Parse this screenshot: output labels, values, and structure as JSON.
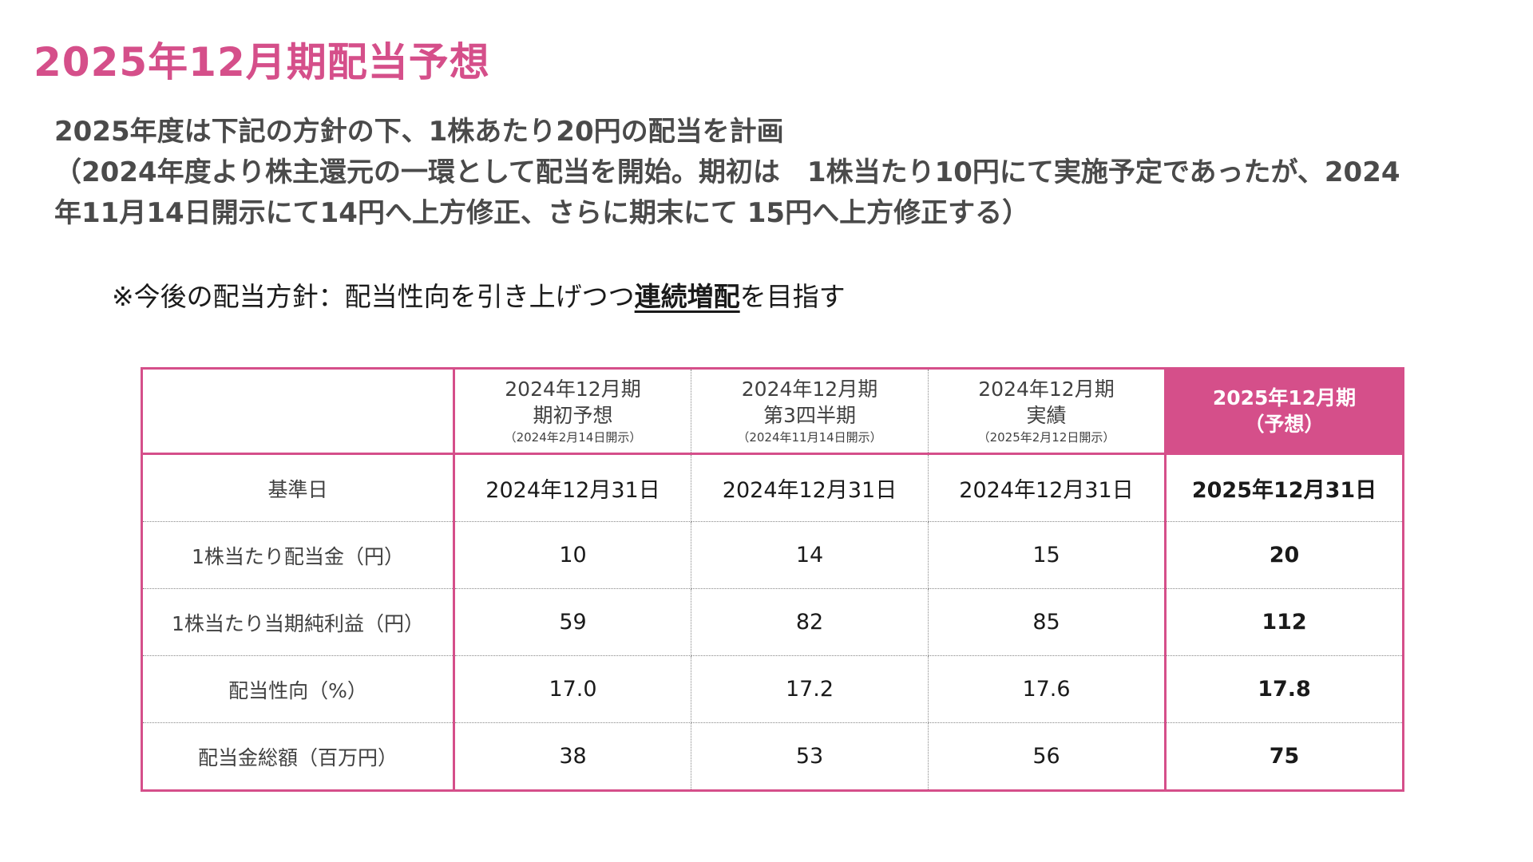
{
  "title": "2025年12月期配当予想",
  "lead": {
    "line1": "2025年度は下記の方針の下、1株あたり20円の配当を計画",
    "line2": "（2024年度より株主還元の一環として配当を開始。期初は　1株当たり10円にて実施予定であったが、2024",
    "line3": "年11月14日開示にて14円へ上方修正、さらに期末にて 15円へ上方修正する）"
  },
  "policy": {
    "prefix": "※今後の配当方針：配当性向を引き上げつつ",
    "emphasis": "連続増配",
    "suffix": "を目指す"
  },
  "table": {
    "columns": [
      {
        "line1": "2024年12月期",
        "line2": "期初予想",
        "note": "（2024年2月14日開示）"
      },
      {
        "line1": "2024年12月期",
        "line2": "第3四半期",
        "note": "（2024年11月14日開示）"
      },
      {
        "line1": "2024年12月期",
        "line2": "実績",
        "note": "（2025年2月12日開示）"
      },
      {
        "line1": "2025年12月期",
        "line2": "（予想）",
        "note": ""
      }
    ],
    "rows": [
      {
        "label": "基準日",
        "values": [
          "2024年12月31日",
          "2024年12月31日",
          "2024年12月31日",
          "2025年12月31日"
        ]
      },
      {
        "label": "1株当たり配当金（円）",
        "values": [
          "10",
          "14",
          "15",
          "20"
        ]
      },
      {
        "label": "1株当たり当期純利益（円）",
        "values": [
          "59",
          "82",
          "85",
          "112"
        ]
      },
      {
        "label": "配当性向（%）",
        "values": [
          "17.0",
          "17.2",
          "17.6",
          "17.8"
        ]
      },
      {
        "label": "配当金総額（百万円）",
        "values": [
          "38",
          "53",
          "56",
          "75"
        ]
      }
    ]
  },
  "colors": {
    "accent": "#d54f8a",
    "text": "#404040"
  }
}
